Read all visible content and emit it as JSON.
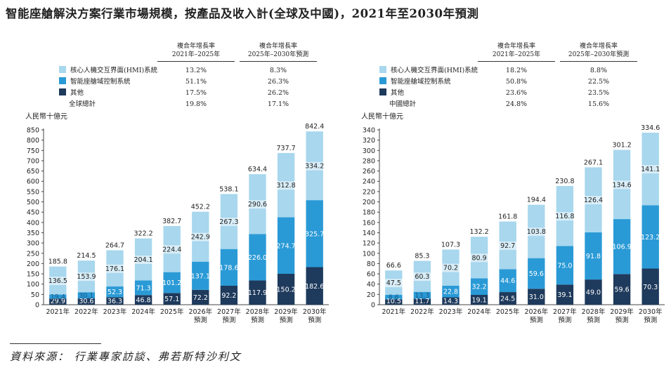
{
  "title": "智能座艙解決方案行業市場規模，按產品及收入計(全球及中國)，2021年至2030年預測",
  "colors": {
    "hmi": "#a8d7ee",
    "domain": "#2a9ad6",
    "other": "#1e3a5c"
  },
  "footer": "資料來源： 行業專家訪談、弗若斯特沙利文",
  "legends": [
    {
      "headers": [
        {
          "l1": "複合年增長率",
          "l2": "2021年–2025年"
        },
        {
          "l1": "複合年增長率",
          "l2": "2025年–2030年預測"
        }
      ],
      "rows": [
        {
          "label": "核心人機交互界面(HMI)系統",
          "swatch": "hmi",
          "c1": "13.2%",
          "c2": "8.3%"
        },
        {
          "label": "智能座艙域控制系統",
          "swatch": "domain",
          "c1": "51.1%",
          "c2": "26.3%"
        },
        {
          "label": "其他",
          "swatch": "other",
          "c1": "17.5%",
          "c2": "26.2%"
        },
        {
          "label": "全球總計",
          "swatch": "",
          "c1": "19.8%",
          "c2": "17.1%"
        }
      ]
    },
    {
      "headers": [
        {
          "l1": "複合年增長率",
          "l2": "2021年–2025年"
        },
        {
          "l1": "複合年增長率",
          "l2": "2025年–2030年預測"
        }
      ],
      "rows": [
        {
          "label": "核心人機交互界面(HMI)系統",
          "swatch": "hmi",
          "c1": "18.2%",
          "c2": "8.8%"
        },
        {
          "label": "智能座艙域控制系統",
          "swatch": "domain",
          "c1": "50.8%",
          "c2": "22.5%"
        },
        {
          "label": "其他",
          "swatch": "other",
          "c1": "23.6%",
          "c2": "23.5%"
        },
        {
          "label": "中國總計",
          "swatch": "",
          "c1": "24.8%",
          "c2": "15.6%"
        }
      ]
    }
  ],
  "chart_data": [
    {
      "type": "bar",
      "stacked": true,
      "ylabel": "人民幣十億元",
      "ylim": [
        0,
        850
      ],
      "yticks": [
        0,
        50,
        100,
        150,
        200,
        250,
        300,
        350,
        400,
        450,
        500,
        550,
        600,
        650,
        700,
        750,
        800,
        850
      ],
      "categories": [
        "2021年",
        "2022年",
        "2023年",
        "2024年",
        "2025年",
        "2026年\n預測",
        "2027年\n預測",
        "2028年\n預測",
        "2029年\n預測",
        "2030年\n預測"
      ],
      "series": [
        {
          "name": "其他",
          "key": "other",
          "values": [
            29.9,
            30.6,
            36.3,
            46.8,
            57.1,
            72.2,
            92.2,
            117.9,
            150.2,
            182.6
          ]
        },
        {
          "name": "智能座艙域控制系統",
          "key": "domain",
          "values": [
            19.4,
            30.1,
            52.3,
            71.3,
            101.2,
            137.1,
            178.6,
            226.0,
            274.7,
            325.7
          ]
        },
        {
          "name": "核心人機交互界面(HMI)系統",
          "key": "hmi",
          "values": [
            136.5,
            153.9,
            176.1,
            204.1,
            224.4,
            242.9,
            267.3,
            290.6,
            312.8,
            334.2
          ]
        }
      ],
      "totals": [
        185.8,
        214.5,
        264.7,
        322.2,
        382.7,
        452.2,
        538.1,
        634.4,
        737.7,
        842.4
      ]
    },
    {
      "type": "bar",
      "stacked": true,
      "ylabel": "人民幣十億元",
      "ylim": [
        0,
        340
      ],
      "yticks": [
        0,
        20,
        40,
        60,
        80,
        100,
        120,
        140,
        160,
        180,
        200,
        220,
        240,
        260,
        280,
        300,
        320,
        340
      ],
      "categories": [
        "2021年",
        "2022年",
        "2023年",
        "2024年",
        "2025年",
        "2026年\n預測",
        "2027年\n預測",
        "2028年\n預測",
        "2029年\n預測",
        "2030年\n預測"
      ],
      "series": [
        {
          "name": "其他",
          "key": "other",
          "values": [
            10.5,
            11.7,
            14.3,
            19.1,
            24.5,
            31.0,
            39.1,
            49.0,
            59.6,
            70.3
          ]
        },
        {
          "name": "智能座艙域控制系統",
          "key": "domain",
          "values": [
            8.6,
            13.3,
            22.8,
            32.2,
            44.6,
            59.6,
            75.0,
            91.8,
            106.9,
            123.2
          ]
        },
        {
          "name": "核心人機交互界面(HMI)系統",
          "key": "hmi",
          "values": [
            47.5,
            60.3,
            70.2,
            80.9,
            92.7,
            103.8,
            116.8,
            126.4,
            134.6,
            141.1
          ]
        }
      ],
      "totals": [
        66.6,
        85.3,
        107.3,
        132.2,
        161.8,
        194.4,
        230.8,
        267.1,
        301.2,
        334.6
      ]
    }
  ]
}
